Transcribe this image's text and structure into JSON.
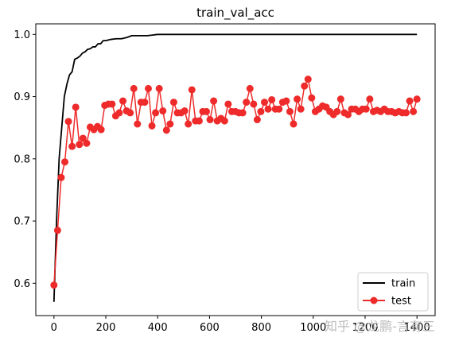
{
  "chart_data": {
    "type": "line",
    "title": "train_val_acc",
    "xlabel": "",
    "ylabel": "",
    "xlim": [
      -70,
      1470
    ],
    "ylim": [
      0.548,
      1.017
    ],
    "x_ticks": [
      0,
      200,
      400,
      600,
      800,
      1000,
      1200,
      1400
    ],
    "y_ticks": [
      0.6,
      0.7,
      0.8,
      0.9,
      1.0
    ],
    "grid": false,
    "legend_position": "lower-right",
    "colors": {
      "train": "#000000",
      "test": "#ee2a2a"
    },
    "series": [
      {
        "name": "train",
        "style": "line",
        "x": [
          0,
          10,
          20,
          30,
          40,
          50,
          60,
          70,
          80,
          90,
          100,
          110,
          120,
          130,
          140,
          150,
          160,
          170,
          180,
          190,
          200,
          220,
          240,
          260,
          280,
          300,
          320,
          340,
          360,
          380,
          400,
          450,
          500,
          600,
          700,
          800,
          900,
          1000,
          1100,
          1200,
          1300,
          1400
        ],
        "values": [
          0.57,
          0.7,
          0.8,
          0.85,
          0.9,
          0.92,
          0.935,
          0.94,
          0.96,
          0.962,
          0.965,
          0.97,
          0.972,
          0.976,
          0.977,
          0.98,
          0.98,
          0.985,
          0.985,
          0.99,
          0.99,
          0.992,
          0.993,
          0.993,
          0.995,
          0.998,
          0.998,
          0.998,
          0.998,
          0.999,
          1.0,
          1.0,
          1.0,
          1.0,
          1.0,
          1.0,
          1.0,
          1.0,
          1.0,
          1.0,
          1.0,
          1.0
        ]
      },
      {
        "name": "test",
        "style": "line-marker",
        "x": [
          0,
          14,
          28,
          42,
          56,
          70,
          84,
          98,
          112,
          126,
          140,
          154,
          168,
          182,
          196,
          210,
          224,
          238,
          252,
          266,
          280,
          294,
          308,
          322,
          336,
          350,
          364,
          378,
          392,
          406,
          420,
          434,
          448,
          462,
          476,
          490,
          504,
          518,
          532,
          546,
          560,
          574,
          588,
          602,
          616,
          630,
          644,
          658,
          672,
          686,
          700,
          714,
          728,
          742,
          756,
          770,
          784,
          798,
          812,
          826,
          840,
          854,
          868,
          882,
          896,
          910,
          924,
          938,
          952,
          966,
          980,
          994,
          1008,
          1022,
          1036,
          1050,
          1064,
          1078,
          1092,
          1106,
          1120,
          1134,
          1148,
          1162,
          1176,
          1190,
          1204,
          1218,
          1232,
          1246,
          1260,
          1274,
          1288,
          1302,
          1316,
          1330,
          1344,
          1358,
          1372,
          1386,
          1400
        ],
        "values": [
          0.597,
          0.685,
          0.77,
          0.795,
          0.86,
          0.82,
          0.883,
          0.823,
          0.833,
          0.825,
          0.851,
          0.847,
          0.852,
          0.847,
          0.886,
          0.888,
          0.888,
          0.869,
          0.874,
          0.893,
          0.877,
          0.874,
          0.913,
          0.856,
          0.891,
          0.891,
          0.913,
          0.853,
          0.874,
          0.913,
          0.877,
          0.846,
          0.856,
          0.891,
          0.874,
          0.874,
          0.877,
          0.856,
          0.911,
          0.861,
          0.861,
          0.876,
          0.876,
          0.863,
          0.893,
          0.861,
          0.865,
          0.861,
          0.888,
          0.876,
          0.876,
          0.874,
          0.874,
          0.891,
          0.913,
          0.888,
          0.863,
          0.876,
          0.891,
          0.88,
          0.895,
          0.88,
          0.88,
          0.891,
          0.893,
          0.876,
          0.856,
          0.896,
          0.88,
          0.917,
          0.928,
          0.898,
          0.876,
          0.88,
          0.885,
          0.883,
          0.876,
          0.871,
          0.876,
          0.896,
          0.874,
          0.871,
          0.88,
          0.88,
          0.876,
          0.88,
          0.88,
          0.896,
          0.876,
          0.878,
          0.876,
          0.88,
          0.876,
          0.876,
          0.874,
          0.876,
          0.874,
          0.874,
          0.893,
          0.876,
          0.896
        ]
      }
    ]
  },
  "watermark": {
    "text": "知乎 @龙鹏-言有三"
  }
}
